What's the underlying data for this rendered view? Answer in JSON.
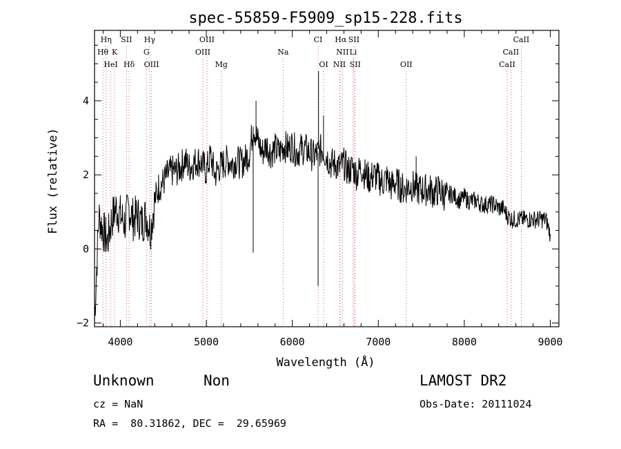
{
  "chart_data": {
    "type": "line",
    "title": "spec-55859-F5909_sp15-228.fits",
    "xlabel": "Wavelength (Å)",
    "ylabel": "Flux (relative)",
    "xlim": [
      3700,
      9100
    ],
    "ylim": [
      -2.1,
      5.9
    ],
    "x_ticks": [
      4000,
      5000,
      6000,
      7000,
      8000,
      9000
    ],
    "y_ticks": [
      -2,
      0,
      2,
      4
    ],
    "grid": false,
    "series": [
      {
        "x": [
          3700,
          3750,
          3800,
          3850,
          3900,
          3950,
          4000,
          4050,
          4100,
          4150,
          4200,
          4250,
          4300,
          4350,
          4400,
          4450,
          4500,
          4550,
          4600,
          4650,
          4700,
          4750,
          4800,
          4850,
          4900,
          4950,
          5000,
          5050,
          5100,
          5150,
          5200,
          5250,
          5300,
          5350,
          5400,
          5450,
          5500,
          5550,
          5600,
          5650,
          5700,
          5750,
          5800,
          5850,
          5900,
          5950,
          6000,
          6050,
          6100,
          6150,
          6200,
          6250,
          6300,
          6350,
          6400,
          6450,
          6500,
          6550,
          6600,
          6650,
          6700,
          6750,
          6800,
          6850,
          6900,
          6950,
          7000,
          7050,
          7100,
          7150,
          7200,
          7250,
          7300,
          7350,
          7400,
          7450,
          7500,
          7550,
          7600,
          7650,
          7700,
          7750,
          7800,
          7850,
          7900,
          7950,
          8000,
          8050,
          8100,
          8150,
          8200,
          8250,
          8300,
          8350,
          8400,
          8450,
          8500,
          8550,
          8600,
          8650,
          8700,
          8750,
          8800,
          8850,
          8900,
          8950,
          9000
        ],
        "y": [
          -1.9,
          0.9,
          0.5,
          0.2,
          0.8,
          1.1,
          0.9,
          0.7,
          1.1,
          0.8,
          0.9,
          0.7,
          0.9,
          0.5,
          1.3,
          1.7,
          1.8,
          2.0,
          2.1,
          2.1,
          2.2,
          2.4,
          2.2,
          2.3,
          2.4,
          2.3,
          2.1,
          2.5,
          2.0,
          2.2,
          2.3,
          2.4,
          2.3,
          2.4,
          2.3,
          2.4,
          2.6,
          3.3,
          2.9,
          2.6,
          2.8,
          2.6,
          2.7,
          2.6,
          2.8,
          2.7,
          2.8,
          2.6,
          2.7,
          2.7,
          2.6,
          2.5,
          2.6,
          2.7,
          2.5,
          2.3,
          2.3,
          2.2,
          2.3,
          2.1,
          2.2,
          2.0,
          2.2,
          2.0,
          1.9,
          2.0,
          1.9,
          1.8,
          1.9,
          1.7,
          1.8,
          1.7,
          1.6,
          1.7,
          1.7,
          1.6,
          1.6,
          1.6,
          1.6,
          1.5,
          1.6,
          1.5,
          1.4,
          1.5,
          1.4,
          1.3,
          1.4,
          1.3,
          1.3,
          1.3,
          1.2,
          1.2,
          1.2,
          1.2,
          1.1,
          1.1,
          0.9,
          0.8,
          0.8,
          0.8,
          0.8,
          0.8,
          0.8,
          0.8,
          0.8,
          0.8,
          0.4
        ]
      }
    ],
    "spikes": [
      {
        "x": 5545,
        "y": -0.1
      },
      {
        "x": 5578,
        "y": 4.0
      },
      {
        "x": 6300,
        "y": -1.0
      },
      {
        "x": 6305,
        "y": 4.8
      },
      {
        "x": 6363,
        "y": 3.6
      },
      {
        "x": 7440,
        "y": 2.5
      }
    ],
    "line_labels": [
      {
        "label": "Hη",
        "x": 3835,
        "row": 0
      },
      {
        "label": "Hθ",
        "x": 3797,
        "row": 1
      },
      {
        "label": "K",
        "x": 3934,
        "row": 1
      },
      {
        "label": "HeI",
        "x": 3889,
        "row": 2
      },
      {
        "label": "SII",
        "x": 4072,
        "row": 0
      },
      {
        "label": "Hδ",
        "x": 4102,
        "row": 2
      },
      {
        "label": "Hγ",
        "x": 4341,
        "row": 0
      },
      {
        "label": "G",
        "x": 4304,
        "row": 1
      },
      {
        "label": "OIII",
        "x": 4363,
        "row": 2
      },
      {
        "label": "OIII",
        "x": 5007,
        "row": 0
      },
      {
        "label": "OIII",
        "x": 4959,
        "row": 1
      },
      {
        "label": "Mg",
        "x": 5175,
        "row": 2
      },
      {
        "label": "Na",
        "x": 5893,
        "row": 1
      },
      {
        "label": "CI",
        "x": 6300,
        "row": 0
      },
      {
        "label": "OI",
        "x": 6364,
        "row": 2
      },
      {
        "label": "Hα",
        "x": 6563,
        "row": 0
      },
      {
        "label": "SII",
        "x": 6716,
        "row": 0
      },
      {
        "label": "NII",
        "x": 6583,
        "row": 1
      },
      {
        "label": "Li",
        "x": 6708,
        "row": 1
      },
      {
        "label": "NII",
        "x": 6548,
        "row": 2
      },
      {
        "label": "SII",
        "x": 6731,
        "row": 2
      },
      {
        "label": "OII",
        "x": 7325,
        "row": 2
      },
      {
        "label": "CaII",
        "x": 8662,
        "row": 0
      },
      {
        "label": "CaII",
        "x": 8542,
        "row": 1
      },
      {
        "label": "CaII",
        "x": 8498,
        "row": 2
      }
    ],
    "line_marker_color": "#cc3333"
  },
  "info": {
    "class": "Unknown",
    "subclass": "Non",
    "survey": "LAMOST DR2",
    "cz": "cz = NaN",
    "obs_date": "Obs-Date: 20111024",
    "radec": "RA =  80.31862, DEC =  29.65969"
  }
}
